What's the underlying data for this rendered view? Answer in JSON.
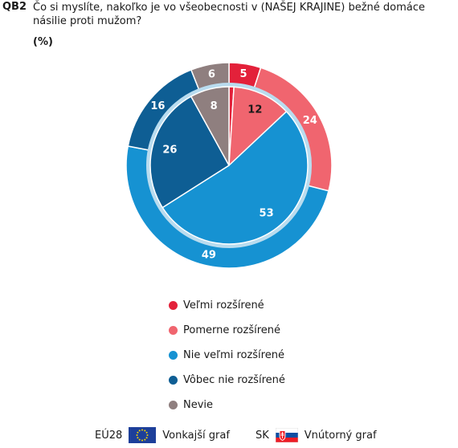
{
  "header": {
    "code": "QB2",
    "question": "Čo si myslíte, nakoľko je vo všeobecnosti v (NAŠEJ KRAJINE) bežné domáce násilie proti mužom?",
    "unit": "(%)"
  },
  "chart_data": {
    "type": "pie",
    "variant": "double-donut",
    "categories": [
      "Veľmi rozšírené",
      "Pomerne rozšírené",
      "Nie veľmi rozšírené",
      "Vôbec nie rozšírené",
      "Nevie"
    ],
    "colors": [
      "#e3213a",
      "#f0656f",
      "#1692d2",
      "#0e5e94",
      "#8f7f7f"
    ],
    "series": [
      {
        "ring": "outer",
        "values": [
          5,
          24,
          49,
          16,
          6
        ]
      },
      {
        "ring": "inner",
        "values": [
          1,
          12,
          53,
          26,
          8
        ]
      }
    ],
    "data_labels": {
      "outer": [
        "5",
        "24",
        "49",
        "16",
        "6"
      ],
      "inner": [
        "",
        "12",
        "53",
        "26",
        "8"
      ]
    },
    "legend_position": "bottom"
  },
  "legend": [
    {
      "label": "Veľmi rozšírené",
      "color": "#e3213a"
    },
    {
      "label": "Pomerne rozšírené",
      "color": "#f0656f"
    },
    {
      "label": "Nie veľmi rozšírené",
      "color": "#1692d2"
    },
    {
      "label": "Vôbec nie rozšírené",
      "color": "#0e5e94"
    },
    {
      "label": "Nevie",
      "color": "#8f7f7f"
    }
  ],
  "footer": {
    "eu_code": "EÚ28",
    "eu_label": "Vonkajší graf",
    "sk_code": "SK",
    "sk_label": "Vnútorný graf"
  }
}
